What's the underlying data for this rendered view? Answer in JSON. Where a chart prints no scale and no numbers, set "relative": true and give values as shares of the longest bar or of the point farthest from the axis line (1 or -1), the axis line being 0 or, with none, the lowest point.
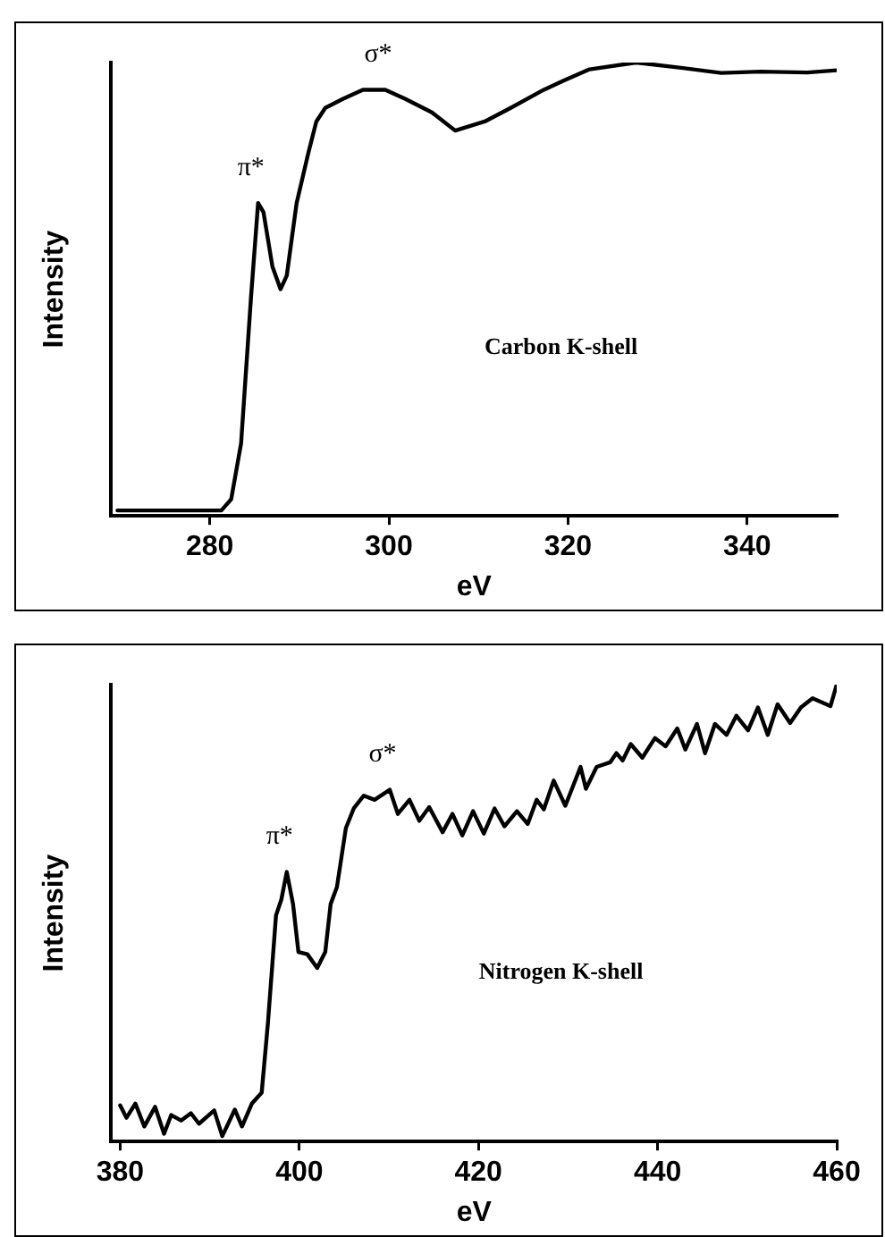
{
  "chart_data": [
    {
      "type": "line",
      "xlabel": "eV",
      "ylabel": "Intensity",
      "relative": true,
      "xlim": [
        269,
        350
      ],
      "xticks": [
        280,
        300,
        320,
        340
      ],
      "grid": false,
      "legend": false,
      "series": [
        {
          "color": "#000000",
          "x": [
            269.7,
            281.3,
            282.4,
            283.5,
            284.6,
            285.4,
            286.0,
            287.0,
            287.9,
            288.6,
            289.7,
            291.0,
            291.9,
            292.9,
            294.9,
            297.1,
            299.6,
            301.8,
            304.8,
            307.4,
            310.7,
            313.6,
            317.3,
            319.5,
            322.4,
            327.6,
            332.0,
            337.1,
            341.5,
            346.7,
            350.0
          ],
          "values": [
            0.012,
            0.012,
            0.037,
            0.16,
            0.48,
            0.69,
            0.67,
            0.55,
            0.5,
            0.53,
            0.69,
            0.8,
            0.87,
            0.9,
            0.92,
            0.94,
            0.94,
            0.92,
            0.89,
            0.85,
            0.87,
            0.9,
            0.94,
            0.96,
            0.985,
            1.0,
            0.99,
            0.977,
            0.98,
            0.978,
            0.983
          ]
        }
      ],
      "annotations": [
        {
          "text": "π*",
          "x": 285.4,
          "y": 0.69
        },
        {
          "text": "σ*",
          "x": 299.6,
          "y": 0.94
        },
        "Carbon K-shell"
      ]
    },
    {
      "type": "line",
      "xlabel": "eV",
      "ylabel": "Intensity",
      "relative": true,
      "xlim": [
        379,
        460
      ],
      "xticks": [
        380,
        400,
        420,
        440,
        460
      ],
      "grid": false,
      "legend": false,
      "series": [
        {
          "color": "#000000",
          "x": [
            380.0,
            380.7,
            381.7,
            382.7,
            383.9,
            384.9,
            385.7,
            386.8,
            387.9,
            388.8,
            390.5,
            391.4,
            392.8,
            393.6,
            394.7,
            395.8,
            396.5,
            397.4,
            398.0,
            398.6,
            399.3,
            399.9,
            400.9,
            402.0,
            402.9,
            403.5,
            404.2,
            405.2,
            406.1,
            407.2,
            408.4,
            410.1,
            411.0,
            412.3,
            413.4,
            414.5,
            416.0,
            417.1,
            418.2,
            419.4,
            420.6,
            421.8,
            422.9,
            424.3,
            425.5,
            426.5,
            427.3,
            428.4,
            429.7,
            431.4,
            432.0,
            433.2,
            434.7,
            435.4,
            436.1,
            437.0,
            438.3,
            439.7,
            440.9,
            442.2,
            443.1,
            444.4,
            445.3,
            446.4,
            447.7,
            448.8,
            450.1,
            451.2,
            452.3,
            453.4,
            454.8,
            456.0,
            457.3,
            459.3,
            460.0
          ],
          "values": [
            0.079,
            0.052,
            0.083,
            0.033,
            0.076,
            0.017,
            0.058,
            0.046,
            0.062,
            0.039,
            0.068,
            0.012,
            0.07,
            0.033,
            0.083,
            0.107,
            0.26,
            0.495,
            0.53,
            0.59,
            0.52,
            0.415,
            0.41,
            0.38,
            0.415,
            0.52,
            0.557,
            0.686,
            0.73,
            0.757,
            0.748,
            0.77,
            0.717,
            0.748,
            0.702,
            0.732,
            0.677,
            0.717,
            0.67,
            0.723,
            0.674,
            0.729,
            0.69,
            0.723,
            0.695,
            0.748,
            0.727,
            0.79,
            0.735,
            0.82,
            0.772,
            0.82,
            0.83,
            0.85,
            0.834,
            0.87,
            0.84,
            0.883,
            0.865,
            0.904,
            0.858,
            0.914,
            0.85,
            0.914,
            0.89,
            0.932,
            0.9,
            0.95,
            0.89,
            0.957,
            0.916,
            0.95,
            0.97,
            0.953,
            1.0
          ]
        }
      ],
      "annotations": [
        {
          "text": "π*",
          "x": 398.6,
          "y": 0.59
        },
        {
          "text": "σ*",
          "x": 410.1,
          "y": 0.77
        },
        "Nitrogen K-shell"
      ]
    }
  ]
}
